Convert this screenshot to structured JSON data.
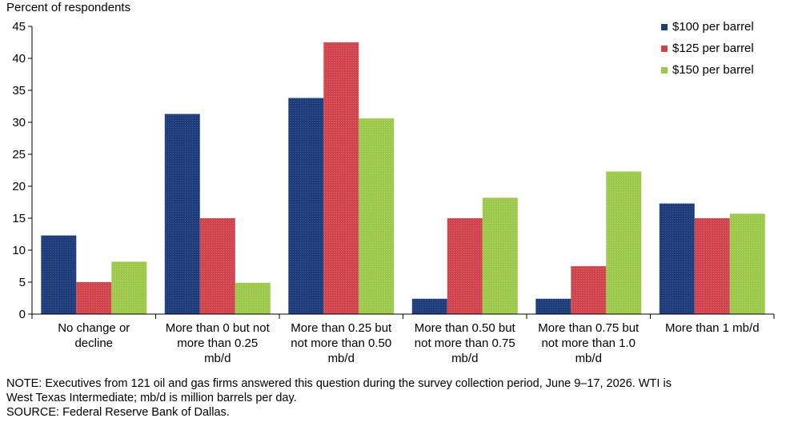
{
  "chart_data": {
    "type": "bar",
    "ylabel": "Percent of respondents",
    "ylim": [
      0,
      45
    ],
    "yticks": [
      0,
      5,
      10,
      15,
      20,
      25,
      30,
      35,
      40,
      45
    ],
    "categories": [
      [
        "No change or",
        "decline"
      ],
      [
        "More than 0 but not",
        "more than 0.25",
        "mb/d"
      ],
      [
        "More than 0.25 but",
        "not more than 0.50",
        "mb/d"
      ],
      [
        "More than 0.50 but",
        "not more than 0.75",
        "mb/d"
      ],
      [
        "More than 0.75 but",
        "not more than 1.0",
        "mb/d"
      ],
      [
        "More than 1 mb/d"
      ]
    ],
    "series": [
      {
        "name": "$100 per barrel",
        "color": "#1f3d7a",
        "values": [
          12.3,
          31.3,
          33.8,
          2.4,
          2.4,
          17.3
        ]
      },
      {
        "name": "$125 per barrel",
        "color": "#d0444e",
        "values": [
          5.0,
          15.0,
          42.5,
          15.0,
          7.5,
          15.0
        ]
      },
      {
        "name": "$150 per barrel",
        "color": "#9cc84b",
        "values": [
          8.2,
          4.9,
          30.6,
          18.2,
          22.3,
          15.7
        ]
      }
    ],
    "legend_position": "top-right",
    "grid": false
  },
  "notes": {
    "line1": "NOTE:  Executives  from  121  oil  and  gas  firms  answered  this  question  during  the  survey  collection  period,  June  9–17,  2026.  WTI is",
    "line2": "West Texas  Intermediate;  mb/d is million barrels per day.",
    "source": "SOURCE:  Federal Reserve Bank of Dallas."
  }
}
